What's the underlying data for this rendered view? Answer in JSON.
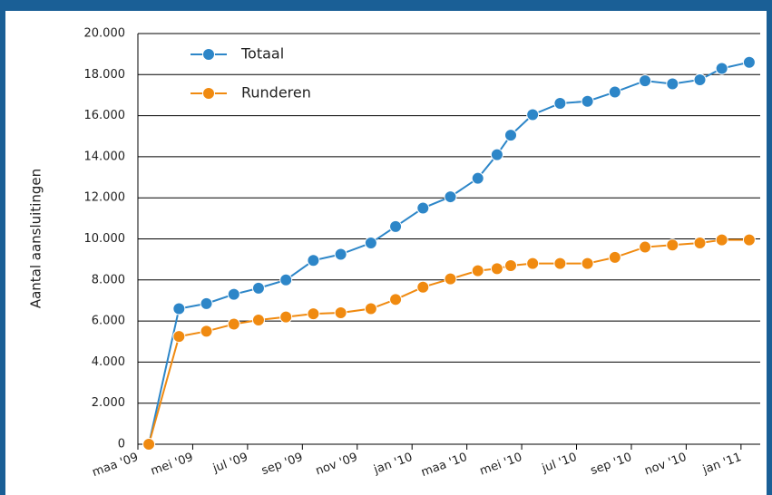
{
  "chart_data": {
    "type": "line",
    "y_label": "Aantal aansluitingen",
    "x": [
      0.4,
      1.5,
      2.5,
      3.5,
      4.4,
      5.4,
      6.4,
      7.4,
      8.5,
      9.4,
      10.4,
      11.4,
      12.4,
      13.1,
      13.6,
      14.4,
      15.4,
      16.4,
      17.4,
      18.5,
      19.5,
      20.5,
      21.3,
      22.3
    ],
    "series": [
      {
        "name": "Totaal",
        "color": "#2d86c8",
        "values": [
          0,
          6600,
          6850,
          7300,
          7600,
          8000,
          8950,
          9250,
          9800,
          10600,
          11500,
          12050,
          12950,
          14100,
          15050,
          16050,
          16600,
          16700,
          17150,
          17700,
          17550,
          17750,
          18300,
          18600
        ]
      },
      {
        "name": "Runderen",
        "color": "#f08a10",
        "values": [
          0,
          5250,
          5500,
          5850,
          6050,
          6200,
          6350,
          6400,
          6600,
          7050,
          7650,
          8050,
          8450,
          8550,
          8700,
          8800,
          8800,
          8800,
          9100,
          9600,
          9700,
          9800,
          9950,
          9950
        ]
      }
    ],
    "xlim": [
      0,
      22.7
    ],
    "xticks": [
      {
        "value": 0,
        "label": "maa '09"
      },
      {
        "value": 2,
        "label": "mei '09"
      },
      {
        "value": 4,
        "label": "jul '09"
      },
      {
        "value": 6,
        "label": "sep '09"
      },
      {
        "value": 8,
        "label": "nov '09"
      },
      {
        "value": 10,
        "label": "jan '10"
      },
      {
        "value": 12,
        "label": "maa '10"
      },
      {
        "value": 14,
        "label": "mei '10"
      },
      {
        "value": 16,
        "label": "jul '10"
      },
      {
        "value": 18,
        "label": "sep '10"
      },
      {
        "value": 20,
        "label": "nov '10"
      },
      {
        "value": 22,
        "label": "jan '11"
      }
    ],
    "ylim": [
      0,
      20000
    ],
    "yticks": [
      0,
      {
        "value": 2000,
        "label": "2.000"
      },
      {
        "value": 4000,
        "label": "4.000"
      },
      {
        "value": 6000,
        "label": "6.000"
      },
      {
        "value": 8000,
        "label": "8.000"
      },
      {
        "value": 10000,
        "label": "10.000"
      },
      {
        "value": 12000,
        "label": "12.000"
      },
      {
        "value": 14000,
        "label": "14.000"
      },
      {
        "value": 16000,
        "label": "16.000"
      },
      {
        "value": 18000,
        "label": "18.000"
      },
      {
        "value": 20000,
        "label": "20.000"
      }
    ],
    "grid": true
  }
}
